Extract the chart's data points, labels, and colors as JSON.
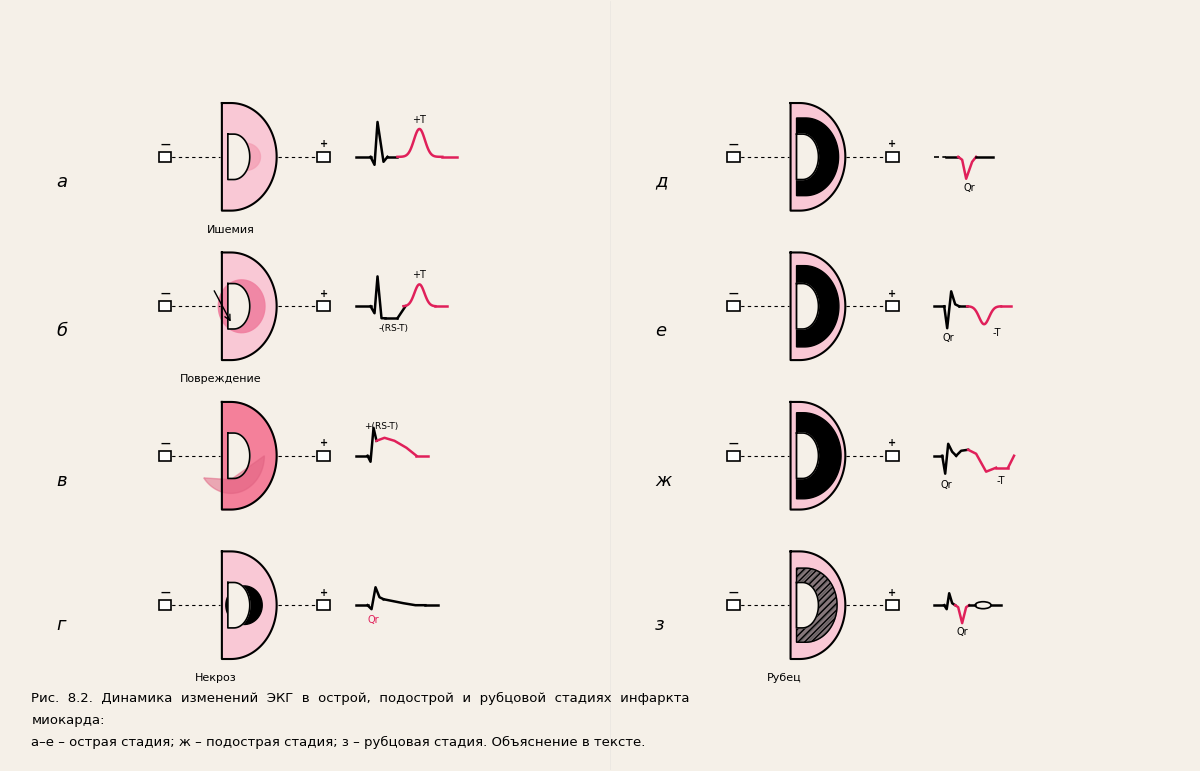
{
  "bg_color": "#f5f0e8",
  "pink_fill": "#f4a0b0",
  "pink_dark": "#e06080",
  "black": "#000000",
  "red_ecg": "#e0205a",
  "dark_gray": "#333333",
  "caption_line1": "Рис.  8.2.  Динамика  изменений  ЭКГ  в  острой,  подострой  и  рубцовой  стадиях  инфаркта",
  "caption_line2": "миокарда:",
  "caption_line3": "а–е – острая стадия; ж – подострая стадия; з – рубцовая стадия. Объяснение в тексте.",
  "labels_left": [
    "а",
    "б",
    "в",
    "г"
  ],
  "labels_right": [
    "д",
    "е",
    "ж",
    "з"
  ],
  "sublabels_left": [
    "Ишемия",
    "Повреждение",
    "",
    "Некроз"
  ],
  "sublabels_right": [
    "",
    "",
    "",
    "Рубец"
  ],
  "ecg_labels_left": [
    "+T",
    "-(RS-T)\n+T",
    "+(RS-T)",
    "Qr"
  ],
  "ecg_labels_right": [
    "Qr",
    "Qr\n-T",
    "Qr\n-T",
    "Qr"
  ]
}
